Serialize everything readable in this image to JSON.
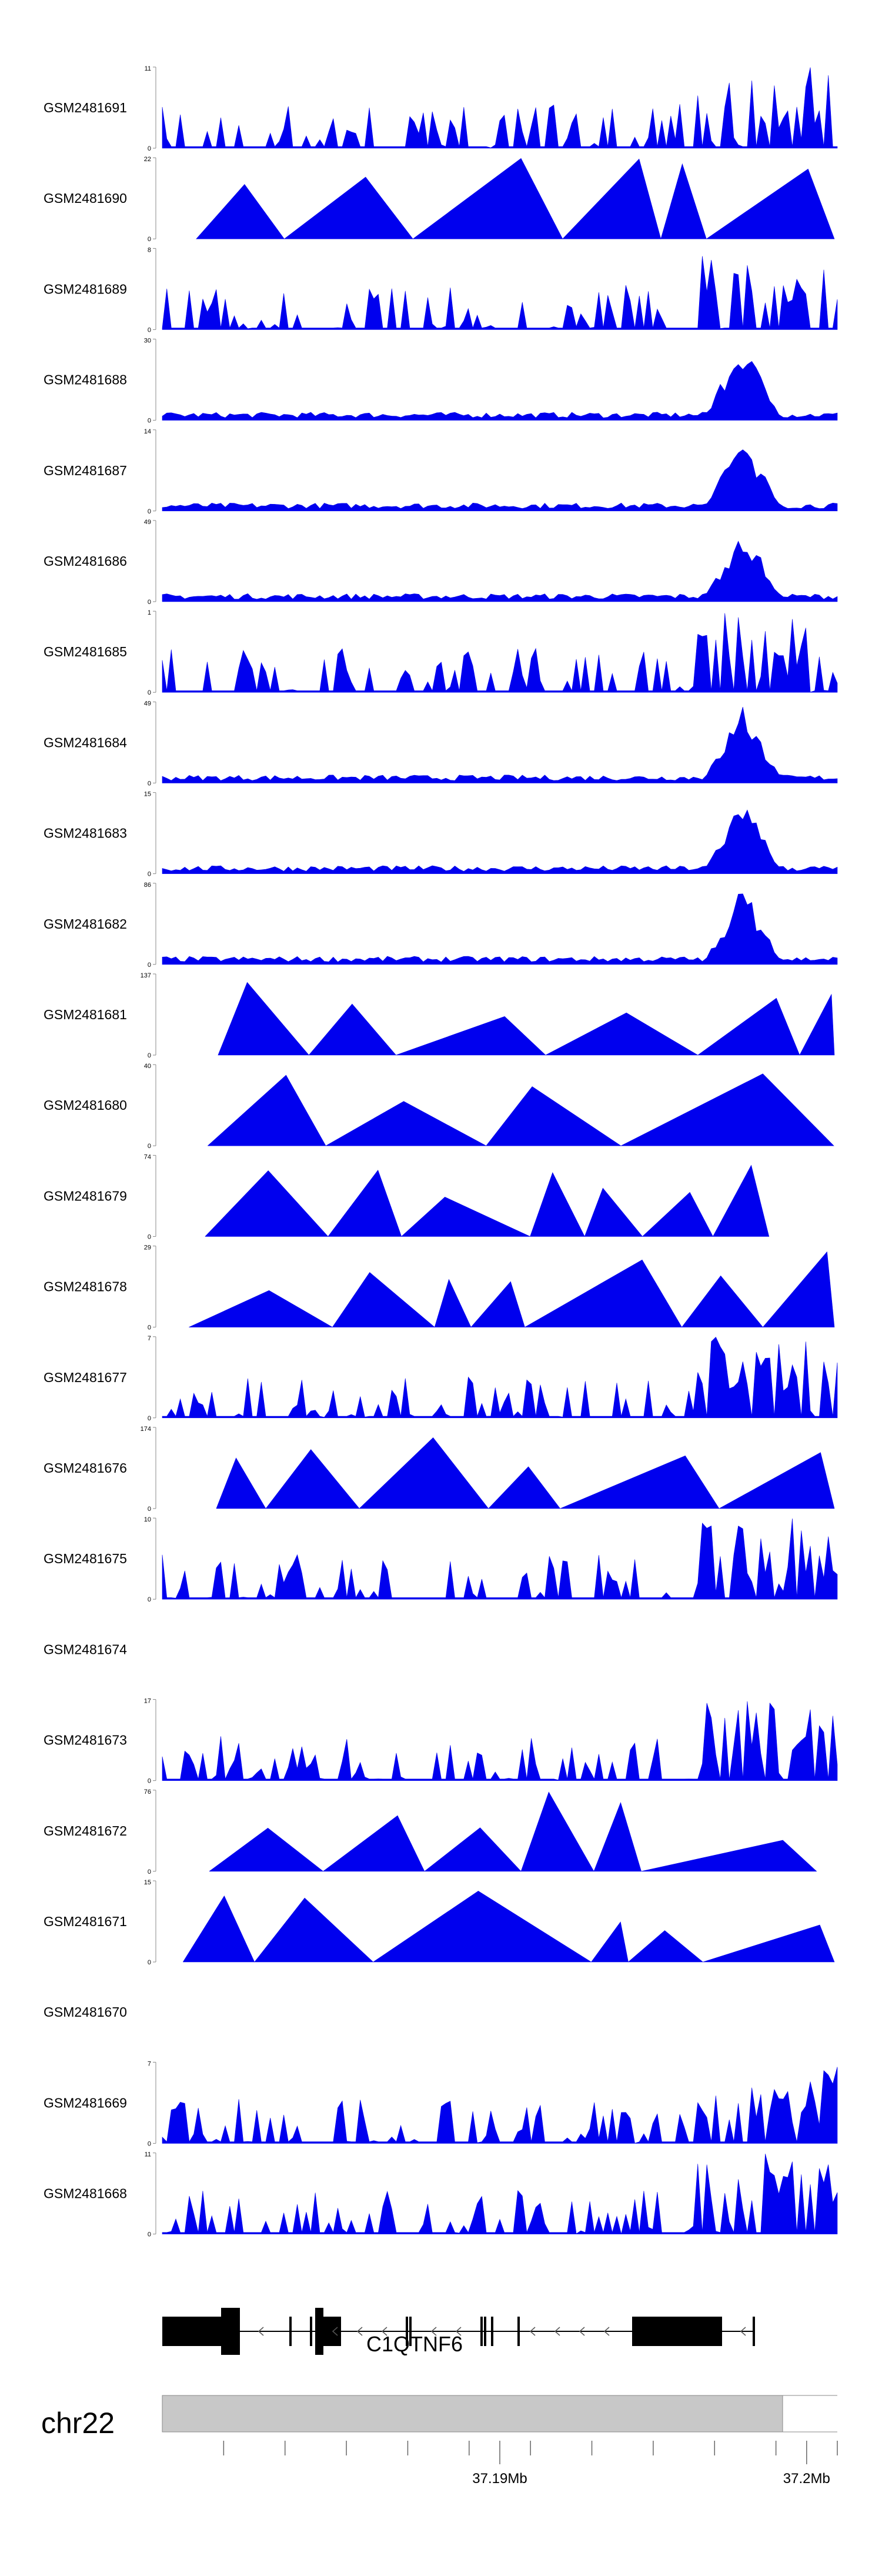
{
  "chart_data": {
    "type": "area",
    "fill_color": "#0000ee",
    "x_range": [
      37179000,
      37201000
    ],
    "tracks": [
      {
        "name": "GSM2481691",
        "ymax": 11,
        "shape": "dense"
      },
      {
        "name": "GSM2481690",
        "ymax": 22,
        "shape": "sparse"
      },
      {
        "name": "GSM2481689",
        "ymax": 8,
        "shape": "dense"
      },
      {
        "name": "GSM2481688",
        "ymax": 30,
        "shape": "peak"
      },
      {
        "name": "GSM2481687",
        "ymax": 14,
        "shape": "peak"
      },
      {
        "name": "GSM2481686",
        "ymax": 49,
        "shape": "peak"
      },
      {
        "name": "GSM2481685",
        "ymax": 1,
        "shape": "dense"
      },
      {
        "name": "GSM2481684",
        "ymax": 49,
        "shape": "peak"
      },
      {
        "name": "GSM2481683",
        "ymax": 15,
        "shape": "peak"
      },
      {
        "name": "GSM2481682",
        "ymax": 86,
        "shape": "peak"
      },
      {
        "name": "GSM2481681",
        "ymax": 137,
        "shape": "sparse"
      },
      {
        "name": "GSM2481680",
        "ymax": 40,
        "shape": "sparse"
      },
      {
        "name": "GSM2481679",
        "ymax": 74,
        "shape": "sparse"
      },
      {
        "name": "GSM2481678",
        "ymax": 29,
        "shape": "sparse"
      },
      {
        "name": "GSM2481677",
        "ymax": 7,
        "shape": "dense"
      },
      {
        "name": "GSM2481676",
        "ymax": 174,
        "shape": "sparse"
      },
      {
        "name": "GSM2481675",
        "ymax": 10,
        "shape": "dense"
      },
      {
        "name": "GSM2481674",
        "ymax": null,
        "shape": "empty"
      },
      {
        "name": "GSM2481673",
        "ymax": 17,
        "shape": "dense"
      },
      {
        "name": "GSM2481672",
        "ymax": 76,
        "shape": "sparse"
      },
      {
        "name": "GSM2481671",
        "ymax": 15,
        "shape": "sparse"
      },
      {
        "name": "GSM2481670",
        "ymax": null,
        "shape": "empty"
      },
      {
        "name": "GSM2481669",
        "ymax": 7,
        "shape": "dense"
      },
      {
        "name": "GSM2481668",
        "ymax": 11,
        "shape": "dense"
      }
    ],
    "gene": {
      "name": "C1QTNF6",
      "strand": "-"
    },
    "chromosome": "chr22",
    "axis_ticks": [
      {
        "label": "37.19Mb",
        "value": 37190000
      },
      {
        "label": "37.2Mb",
        "value": 37200000
      }
    ]
  }
}
